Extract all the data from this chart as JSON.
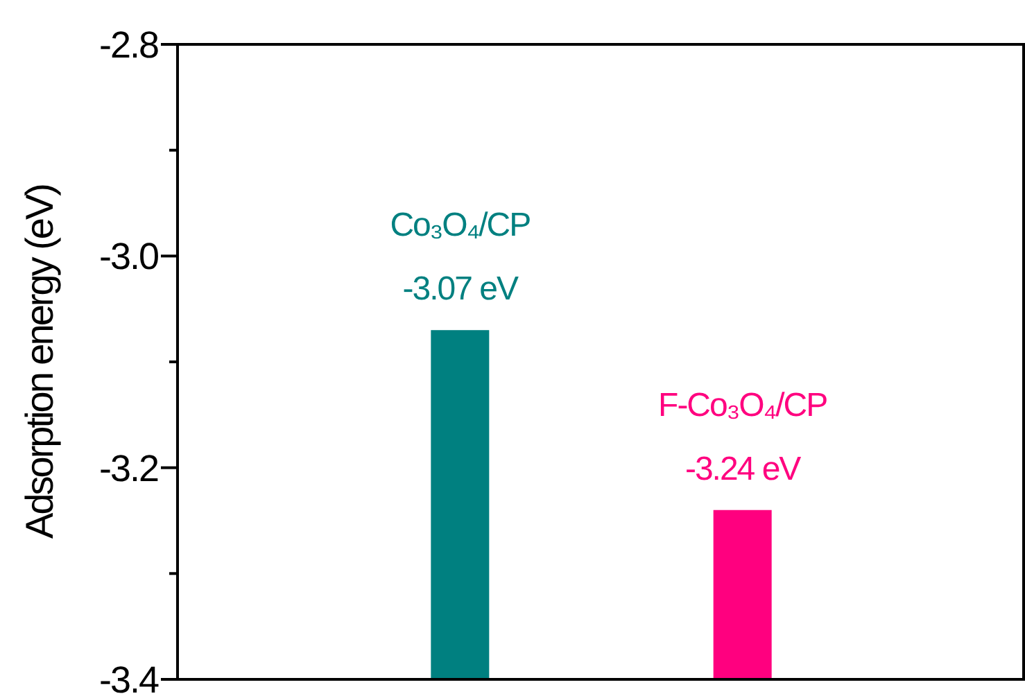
{
  "chart_data": {
    "type": "bar",
    "ylabel": "Adsorption energy (eV)",
    "categories": [
      null,
      null
    ],
    "values": [
      0.33,
      0.16
    ],
    "base": [
      -3.4,
      -3.4
    ],
    "colors": [
      "#008080",
      "#ff007f"
    ],
    "value_labels": [
      "-3.07 eV",
      "-3.24 eV"
    ],
    "annotations": [
      {
        "text": "Co₃O₄/CP",
        "y": -3.07
      },
      {
        "text": "F-Co₃O₄/CP",
        "y": -3.24
      }
    ],
    "ylim": [
      -3.4,
      -2.8
    ],
    "yticks": [
      -2.8,
      {
        "value": -2.9,
        "label": null
      },
      {
        "value": -3.0,
        "label": "-3.0"
      },
      {
        "value": -3.1,
        "label": null
      },
      -3.2,
      {
        "value": -3.3,
        "label": null
      },
      -3.4
    ],
    "grid": false
  }
}
